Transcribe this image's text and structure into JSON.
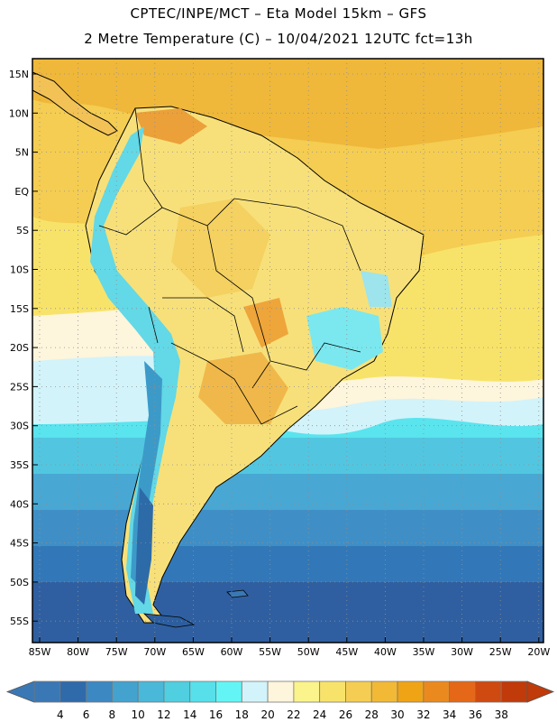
{
  "header": {
    "title_line1": "CPTEC/INPE/MCT –  Eta Model 15km – GFS",
    "title_line2": "2 Metre Temperature (C) – 10/04/2021 12UTC fct=13h"
  },
  "map": {
    "region": "South America",
    "lat_labels": [
      "15N",
      "10N",
      "5N",
      "EQ",
      "5S",
      "10S",
      "15S",
      "20S",
      "25S",
      "30S",
      "35S",
      "40S",
      "45S",
      "50S",
      "55S"
    ],
    "lon_labels": [
      "85W",
      "80W",
      "75W",
      "70W",
      "65W",
      "60W",
      "55W",
      "50W",
      "45W",
      "40W",
      "35W",
      "30W",
      "25W",
      "20W"
    ]
  },
  "colorbar": {
    "labels": [
      "4",
      "6",
      "8",
      "10",
      "12",
      "14",
      "16",
      "18",
      "20",
      "22",
      "24",
      "26",
      "28",
      "30",
      "32",
      "34",
      "36",
      "38"
    ],
    "colors": [
      "#3a78b5",
      "#2f6aab",
      "#3c88c2",
      "#44a2cf",
      "#4ab8d8",
      "#50cfe0",
      "#57e0ea",
      "#63f5f5",
      "#d2f3fa",
      "#fdf5dc",
      "#fbf38c",
      "#f8e36a",
      "#f4cd52",
      "#f1b936",
      "#efa416",
      "#ea8a1e",
      "#e46818",
      "#cf4a10",
      "#c03a0a"
    ],
    "low_arrow_color": "#3a78b5",
    "high_arrow_color": "#c03a0a"
  }
}
